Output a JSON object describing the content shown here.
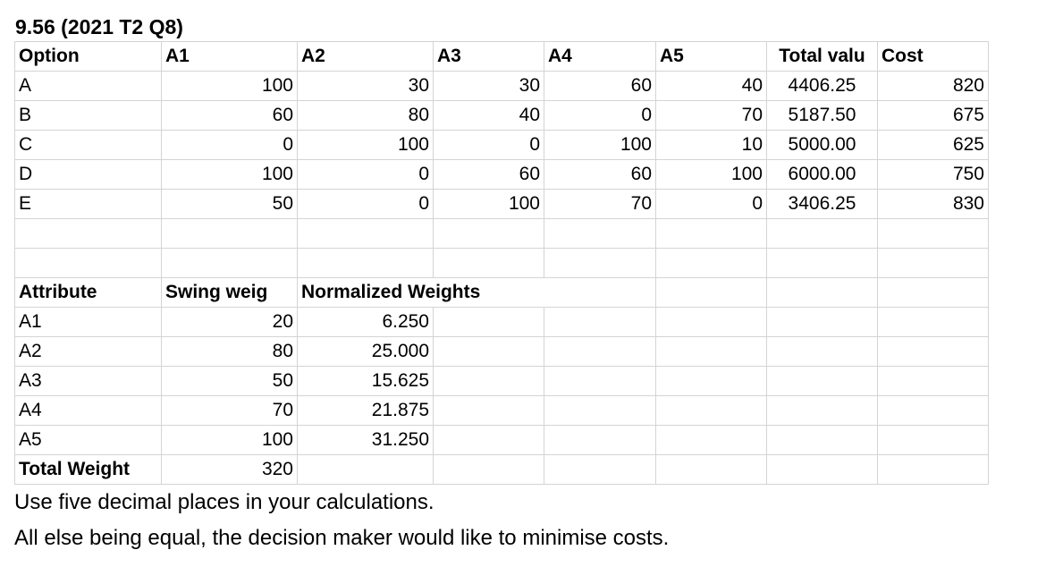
{
  "title": "9.56 (2021 T2 Q8)",
  "options_table": {
    "headers": [
      "Option",
      "A1",
      "A2",
      "A3",
      "A4",
      "A5",
      "Total valu",
      "Cost"
    ],
    "rows": [
      {
        "option": "A",
        "a1": "100",
        "a2": "30",
        "a3": "30",
        "a4": "60",
        "a5": "40",
        "total": "4406.25",
        "cost": "820"
      },
      {
        "option": "B",
        "a1": "60",
        "a2": "80",
        "a3": "40",
        "a4": "0",
        "a5": "70",
        "total": "5187.50",
        "cost": "675"
      },
      {
        "option": "C",
        "a1": "0",
        "a2": "100",
        "a3": "0",
        "a4": "100",
        "a5": "10",
        "total": "5000.00",
        "cost": "625"
      },
      {
        "option": "D",
        "a1": "100",
        "a2": "0",
        "a3": "60",
        "a4": "60",
        "a5": "100",
        "total": "6000.00",
        "cost": "750"
      },
      {
        "option": "E",
        "a1": "50",
        "a2": "0",
        "a3": "100",
        "a4": "70",
        "a5": "0",
        "total": "3406.25",
        "cost": "830"
      }
    ]
  },
  "weights_table": {
    "headers": [
      "Attribute",
      "Swing weig",
      "Normalized Weights"
    ],
    "rows": [
      {
        "attribute": "A1",
        "swing": "20",
        "normalized": "6.250"
      },
      {
        "attribute": "A2",
        "swing": "80",
        "normalized": "25.000"
      },
      {
        "attribute": "A3",
        "swing": "50",
        "normalized": "15.625"
      },
      {
        "attribute": "A4",
        "swing": "70",
        "normalized": "21.875"
      },
      {
        "attribute": "A5",
        "swing": "100",
        "normalized": "31.250"
      }
    ],
    "total_label": "Total Weight",
    "total_value": "320"
  },
  "notes": [
    "Use five decimal places in your calculations.",
    "All else being equal, the decision maker would like to minimise costs."
  ]
}
